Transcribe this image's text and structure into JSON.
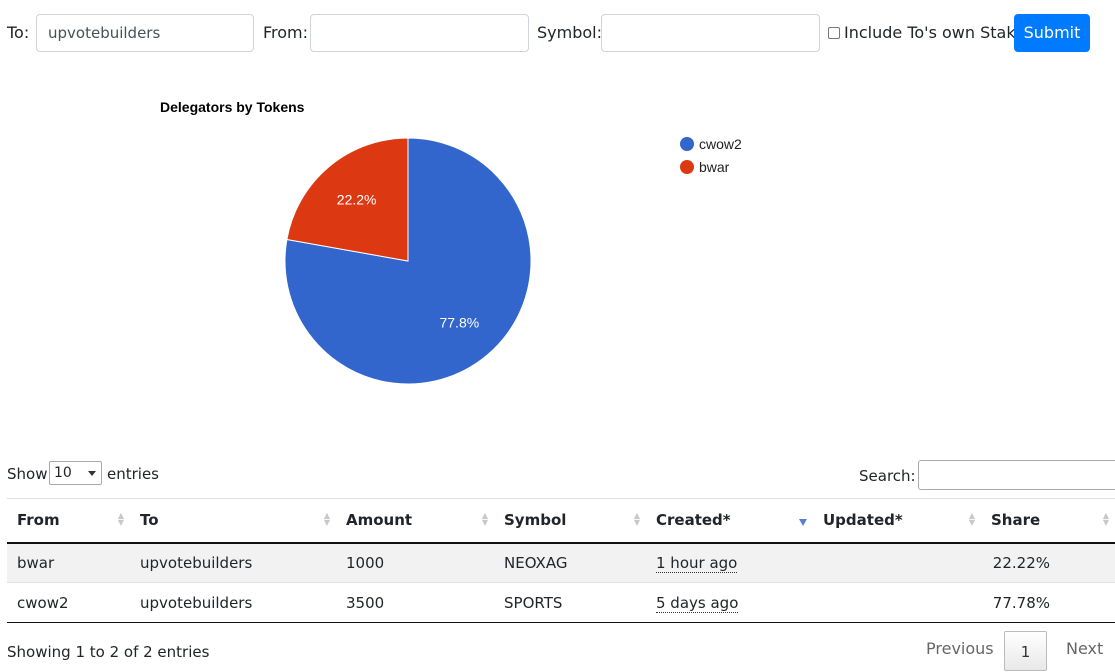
{
  "form": {
    "to_label": "To:",
    "to_value": "upvotebuilders",
    "from_label": "From:",
    "from_value": "",
    "symbol_label": "Symbol:",
    "symbol_value": "",
    "include_stake_label": "Include To's own Stake",
    "include_stake_checked": false,
    "submit_label": "Submit"
  },
  "chart_data": {
    "type": "pie",
    "title": "Delegators by Tokens",
    "slices": [
      {
        "label": "cwow2",
        "value": 77.8,
        "color": "#3366cc"
      },
      {
        "label": "bwar",
        "value": 22.2,
        "color": "#dc3912"
      }
    ],
    "legend": "right"
  },
  "table_controls": {
    "show_label": "Show",
    "page_size": "10",
    "entries_label": "entries",
    "search_label": "Search:"
  },
  "table": {
    "columns": [
      "From",
      "To",
      "Amount",
      "Symbol",
      "Created*",
      "Updated*",
      "Share"
    ],
    "sorted_column": "Created*",
    "rows": [
      {
        "from": "bwar",
        "to": "upvotebuilders",
        "amount": "1000",
        "symbol": "NEOXAG",
        "created": "1 hour ago",
        "updated": "",
        "share": "22.22%"
      },
      {
        "from": "cwow2",
        "to": "upvotebuilders",
        "amount": "3500",
        "symbol": "SPORTS",
        "created": "5 days ago",
        "updated": "",
        "share": "77.78%"
      }
    ]
  },
  "footer": {
    "info": "Showing 1 to 2 of 2 entries",
    "previous": "Previous",
    "current_page": "1",
    "next": "Next"
  }
}
